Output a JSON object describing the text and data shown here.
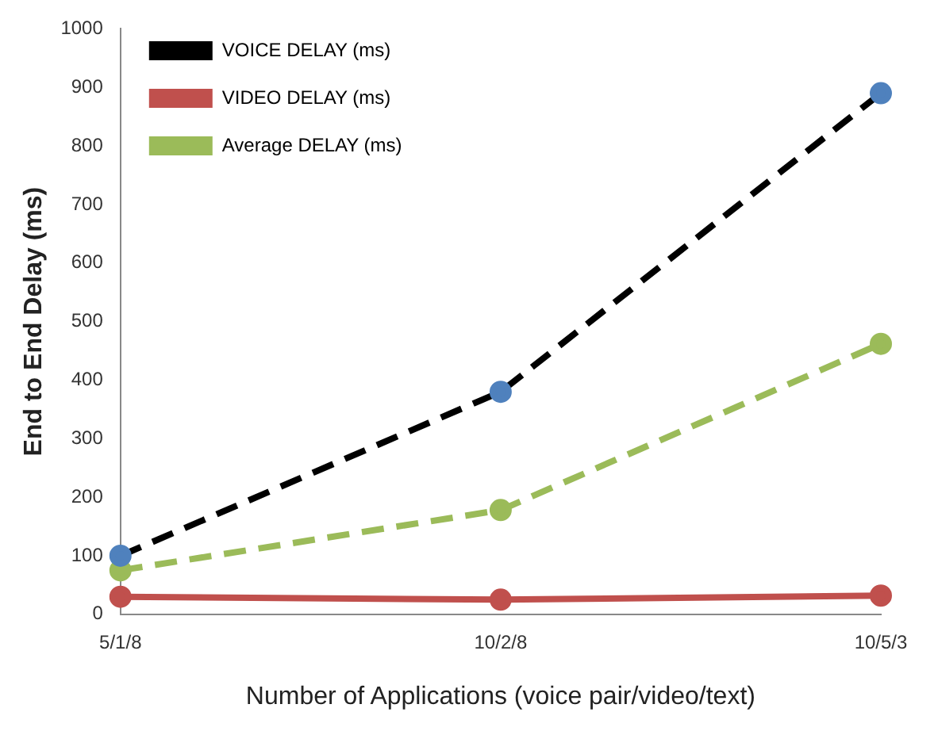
{
  "chart_data": {
    "type": "line",
    "xlabel": "Number of Applications (voice pair/video/text)",
    "ylabel": "End to End Delay (ms)",
    "categories": [
      "5/1/8",
      "10/2/8",
      "10/5/3"
    ],
    "series": [
      {
        "name": "VOICE DELAY (ms)",
        "color": "#000000",
        "colors": [
          "#4f81bd",
          "#4f81bd",
          "#4f81bd"
        ],
        "line_style": "dashed",
        "values": [
          100,
          380,
          890
        ]
      },
      {
        "name": "VIDEO DELAY (ms)",
        "color": "#c0504d",
        "line_style": "solid",
        "values": [
          30,
          25,
          32
        ]
      },
      {
        "name": "Average DELAY (ms)",
        "color": "#9bbb59",
        "line_style": "dashed",
        "values": [
          75,
          178,
          462
        ]
      }
    ],
    "ylim": [
      0,
      1000
    ],
    "yticks": [
      0,
      100,
      200,
      300,
      400,
      500,
      600,
      700,
      800,
      900,
      1000
    ],
    "grid": false,
    "legend": "top left",
    "marker": "circle"
  }
}
